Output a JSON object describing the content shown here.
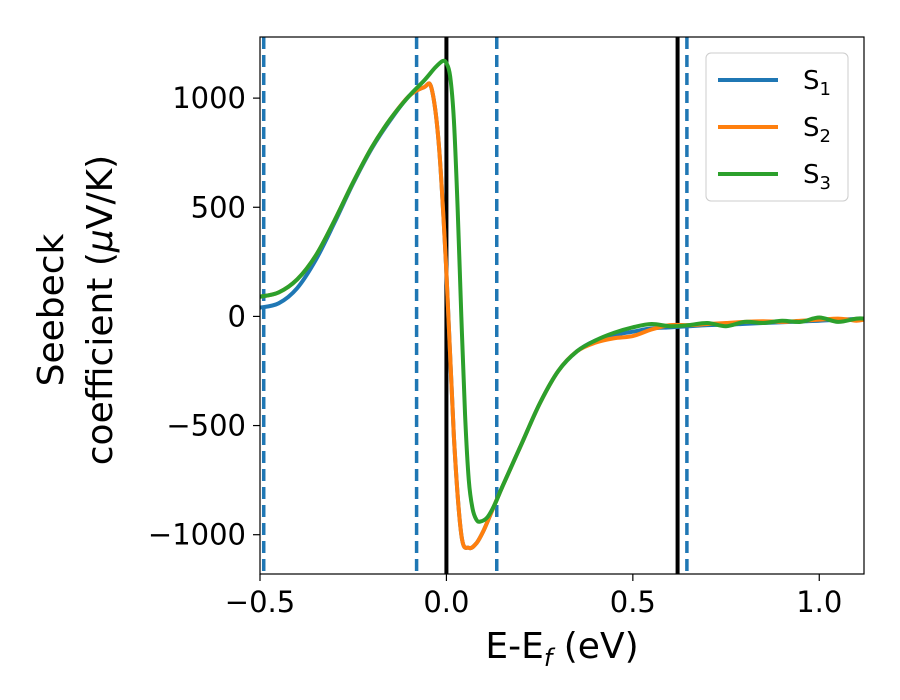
{
  "chart_data": {
    "type": "line",
    "xlabel": "E-E",
    "xlabel_sub": "f",
    "xlabel_unit": " (eV)",
    "ylabel_line1": "Seebeck",
    "ylabel_line2": "coefficient  (",
    "ylabel_mu": "μ",
    "ylabel_unit": "V/K)",
    "xlim": [
      -0.5,
      1.12
    ],
    "ylim": [
      -1180,
      1280
    ],
    "x_ticks": [
      -0.5,
      0.0,
      0.5,
      1.0
    ],
    "x_tick_labels": [
      "−0.5",
      "0.0",
      "0.5",
      "1.0"
    ],
    "y_ticks": [
      -1000,
      -500,
      0,
      500,
      1000
    ],
    "y_tick_labels": [
      "−1000",
      "−500",
      "0",
      "500",
      "1000"
    ],
    "grid": false,
    "legend_position": "top-right",
    "solid_vlines": [
      0.0,
      0.62
    ],
    "dashed_vlines": [
      -0.49,
      -0.08,
      0.135,
      0.645
    ],
    "series": [
      {
        "name": "S",
        "subscript": "1",
        "color": "#1f77b4",
        "points": [
          [
            -0.5,
            40
          ],
          [
            -0.45,
            60
          ],
          [
            -0.4,
            130
          ],
          [
            -0.35,
            260
          ],
          [
            -0.3,
            430
          ],
          [
            -0.25,
            610
          ],
          [
            -0.2,
            770
          ],
          [
            -0.15,
            900
          ],
          [
            -0.1,
            1010
          ],
          [
            -0.06,
            1050
          ],
          [
            -0.04,
            1045
          ],
          [
            -0.02,
            780
          ],
          [
            0.0,
            200
          ],
          [
            0.02,
            -550
          ],
          [
            0.04,
            -1000
          ],
          [
            0.06,
            -1060
          ],
          [
            0.08,
            -1040
          ],
          [
            0.1,
            -980
          ],
          [
            0.12,
            -900
          ],
          [
            0.15,
            -780
          ],
          [
            0.2,
            -590
          ],
          [
            0.25,
            -400
          ],
          [
            0.3,
            -250
          ],
          [
            0.35,
            -160
          ],
          [
            0.4,
            -110
          ],
          [
            0.45,
            -85
          ],
          [
            0.5,
            -70
          ],
          [
            0.55,
            -55
          ],
          [
            0.6,
            -50
          ],
          [
            0.65,
            -45
          ],
          [
            0.7,
            -40
          ],
          [
            0.75,
            -38
          ],
          [
            0.8,
            -34
          ],
          [
            0.85,
            -30
          ],
          [
            0.9,
            -27
          ],
          [
            0.95,
            -23
          ],
          [
            1.0,
            -20
          ],
          [
            1.05,
            -15
          ],
          [
            1.12,
            -10
          ]
        ]
      },
      {
        "name": "S",
        "subscript": "2",
        "color": "#ff7f0e",
        "points": [
          [
            -0.5,
            90
          ],
          [
            -0.45,
            110
          ],
          [
            -0.4,
            170
          ],
          [
            -0.35,
            280
          ],
          [
            -0.3,
            440
          ],
          [
            -0.25,
            615
          ],
          [
            -0.2,
            775
          ],
          [
            -0.15,
            905
          ],
          [
            -0.1,
            1010
          ],
          [
            -0.06,
            1050
          ],
          [
            -0.04,
            1045
          ],
          [
            -0.02,
            780
          ],
          [
            0.0,
            200
          ],
          [
            0.02,
            -550
          ],
          [
            0.04,
            -1000
          ],
          [
            0.06,
            -1060
          ],
          [
            0.08,
            -1040
          ],
          [
            0.1,
            -980
          ],
          [
            0.12,
            -900
          ],
          [
            0.15,
            -780
          ],
          [
            0.2,
            -590
          ],
          [
            0.25,
            -400
          ],
          [
            0.3,
            -250
          ],
          [
            0.35,
            -160
          ],
          [
            0.4,
            -120
          ],
          [
            0.45,
            -100
          ],
          [
            0.5,
            -90
          ],
          [
            0.55,
            -60
          ],
          [
            0.6,
            -40
          ],
          [
            0.65,
            -40
          ],
          [
            0.7,
            -35
          ],
          [
            0.75,
            -30
          ],
          [
            0.8,
            -25
          ],
          [
            0.85,
            -22
          ],
          [
            0.9,
            -25
          ],
          [
            0.95,
            -20
          ],
          [
            1.0,
            -15
          ],
          [
            1.05,
            -10
          ],
          [
            1.08,
            -15
          ],
          [
            1.1,
            -20
          ],
          [
            1.12,
            -15
          ]
        ]
      },
      {
        "name": "S",
        "subscript": "3",
        "color": "#2ca02c",
        "points": [
          [
            -0.5,
            90
          ],
          [
            -0.45,
            110
          ],
          [
            -0.4,
            170
          ],
          [
            -0.35,
            280
          ],
          [
            -0.3,
            440
          ],
          [
            -0.25,
            615
          ],
          [
            -0.2,
            775
          ],
          [
            -0.15,
            905
          ],
          [
            -0.1,
            1010
          ],
          [
            -0.06,
            1080
          ],
          [
            -0.03,
            1140
          ],
          [
            -0.01,
            1170
          ],
          [
            0.0,
            1160
          ],
          [
            0.01,
            1100
          ],
          [
            0.02,
            900
          ],
          [
            0.03,
            500
          ],
          [
            0.04,
            0
          ],
          [
            0.05,
            -450
          ],
          [
            0.06,
            -750
          ],
          [
            0.07,
            -880
          ],
          [
            0.08,
            -930
          ],
          [
            0.09,
            -940
          ],
          [
            0.11,
            -920
          ],
          [
            0.13,
            -860
          ],
          [
            0.15,
            -780
          ],
          [
            0.2,
            -590
          ],
          [
            0.25,
            -400
          ],
          [
            0.3,
            -250
          ],
          [
            0.35,
            -160
          ],
          [
            0.4,
            -110
          ],
          [
            0.45,
            -75
          ],
          [
            0.5,
            -50
          ],
          [
            0.55,
            -35
          ],
          [
            0.6,
            -45
          ],
          [
            0.65,
            -40
          ],
          [
            0.7,
            -30
          ],
          [
            0.75,
            -45
          ],
          [
            0.8,
            -25
          ],
          [
            0.85,
            -30
          ],
          [
            0.9,
            -20
          ],
          [
            0.95,
            -25
          ],
          [
            1.0,
            -5
          ],
          [
            1.05,
            -25
          ],
          [
            1.1,
            -10
          ],
          [
            1.12,
            -10
          ]
        ]
      }
    ]
  }
}
